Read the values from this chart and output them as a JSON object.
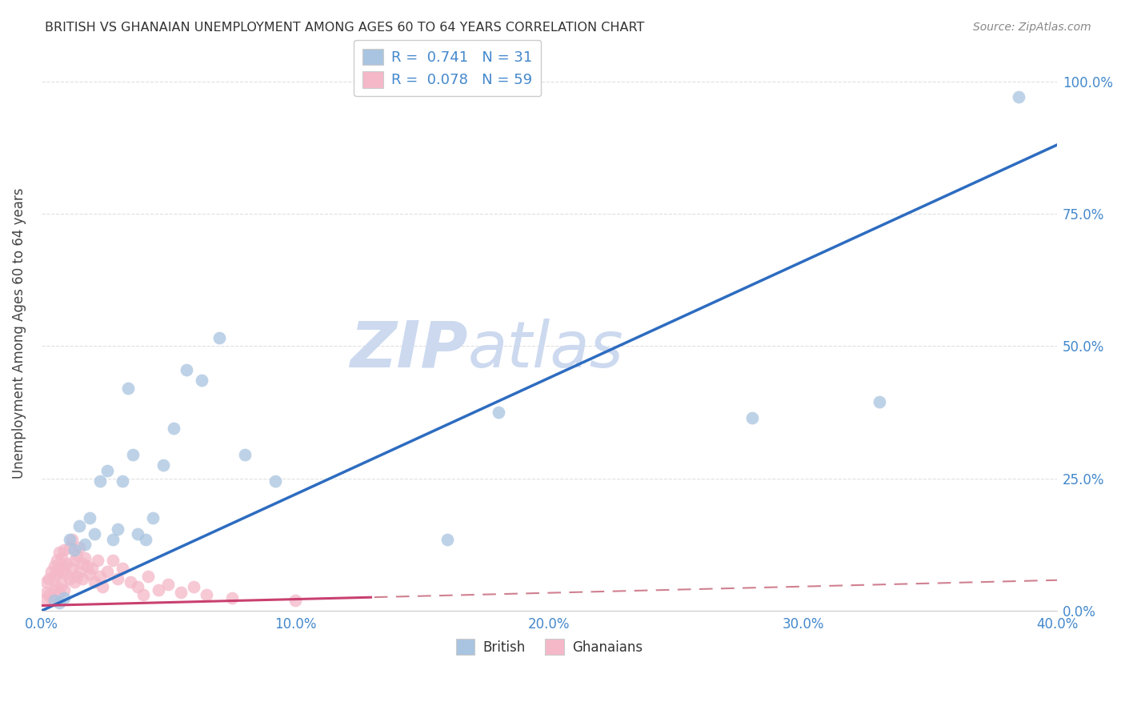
{
  "title": "BRITISH VS GHANAIAN UNEMPLOYMENT AMONG AGES 60 TO 64 YEARS CORRELATION CHART",
  "source": "Source: ZipAtlas.com",
  "ylabel": "Unemployment Among Ages 60 to 64 years",
  "xlim": [
    0,
    0.4
  ],
  "ylim": [
    0,
    1.05
  ],
  "british_R": 0.741,
  "british_N": 31,
  "ghanaian_R": 0.078,
  "ghanaian_N": 59,
  "british_color": "#a8c4e0",
  "ghanaian_color": "#f4b8c8",
  "british_line_color": "#2d6cc0",
  "ghanaian_line_solid_color": "#c94070",
  "ghanaian_line_dashed_color": "#d08090",
  "watermark_color": "#ccd9ef",
  "title_color": "#333333",
  "source_color": "#888888",
  "tick_color": "#4488cc",
  "grid_color": "#dddddd",
  "british_line_slope": 2.2,
  "british_line_intercept": 0.0,
  "ghanaian_line_slope": 0.12,
  "ghanaian_line_intercept": 0.01,
  "british_x": [
    0.005,
    0.007,
    0.009,
    0.011,
    0.013,
    0.015,
    0.017,
    0.019,
    0.021,
    0.023,
    0.026,
    0.028,
    0.03,
    0.032,
    0.034,
    0.036,
    0.038,
    0.041,
    0.044,
    0.048,
    0.052,
    0.057,
    0.063,
    0.07,
    0.08,
    0.092,
    0.16,
    0.18,
    0.28,
    0.33,
    0.385
  ],
  "british_y": [
    0.02,
    0.015,
    0.025,
    0.135,
    0.115,
    0.16,
    0.125,
    0.175,
    0.145,
    0.245,
    0.265,
    0.135,
    0.155,
    0.245,
    0.42,
    0.295,
    0.145,
    0.135,
    0.175,
    0.275,
    0.345,
    0.455,
    0.435,
    0.515,
    0.295,
    0.245,
    0.135,
    0.375,
    0.365,
    0.395,
    0.97
  ],
  "ghanaian_x": [
    0.001,
    0.002,
    0.002,
    0.003,
    0.003,
    0.004,
    0.004,
    0.005,
    0.005,
    0.005,
    0.006,
    0.006,
    0.006,
    0.007,
    0.007,
    0.007,
    0.008,
    0.008,
    0.008,
    0.009,
    0.009,
    0.009,
    0.01,
    0.01,
    0.011,
    0.011,
    0.012,
    0.012,
    0.013,
    0.013,
    0.014,
    0.014,
    0.015,
    0.015,
    0.016,
    0.016,
    0.017,
    0.018,
    0.019,
    0.02,
    0.021,
    0.022,
    0.023,
    0.024,
    0.026,
    0.028,
    0.03,
    0.032,
    0.035,
    0.038,
    0.04,
    0.042,
    0.046,
    0.05,
    0.055,
    0.06,
    0.065,
    0.075,
    0.1
  ],
  "ghanaian_y": [
    0.02,
    0.035,
    0.055,
    0.03,
    0.06,
    0.025,
    0.075,
    0.04,
    0.065,
    0.085,
    0.045,
    0.07,
    0.095,
    0.035,
    0.08,
    0.11,
    0.05,
    0.075,
    0.1,
    0.04,
    0.085,
    0.115,
    0.07,
    0.09,
    0.06,
    0.12,
    0.08,
    0.135,
    0.055,
    0.095,
    0.065,
    0.105,
    0.075,
    0.12,
    0.09,
    0.06,
    0.1,
    0.085,
    0.07,
    0.08,
    0.055,
    0.095,
    0.065,
    0.045,
    0.075,
    0.095,
    0.06,
    0.08,
    0.055,
    0.045,
    0.03,
    0.065,
    0.04,
    0.05,
    0.035,
    0.045,
    0.03,
    0.025,
    0.02
  ]
}
